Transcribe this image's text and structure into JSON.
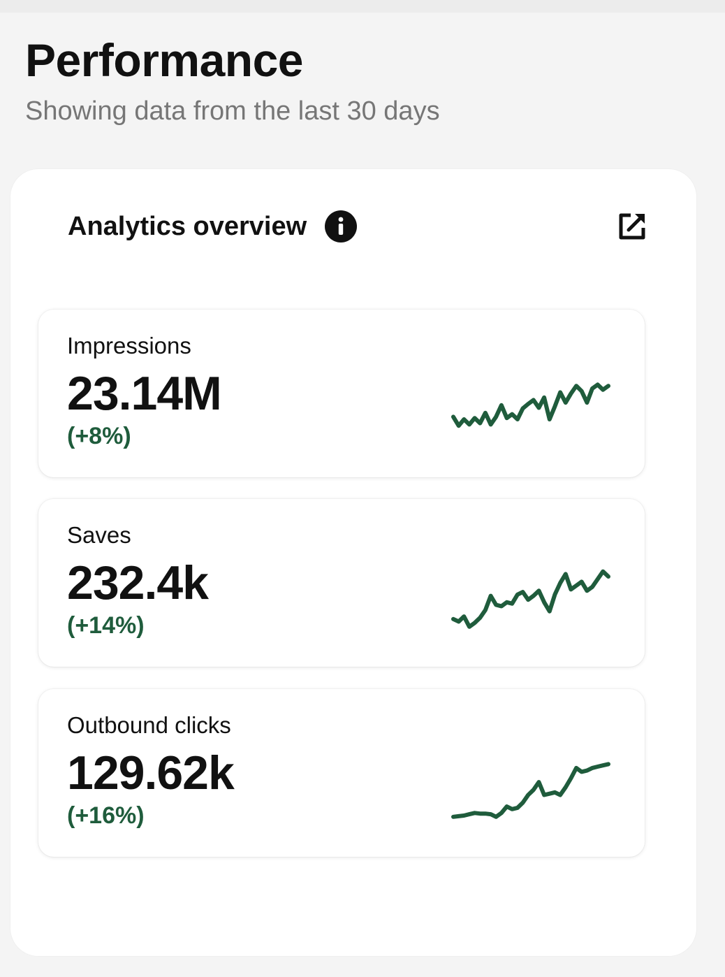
{
  "header": {
    "title": "Performance",
    "subtitle": "Showing data from the last 30 days"
  },
  "card": {
    "title": "Analytics overview",
    "info_icon": "info-icon",
    "external_icon": "external-link-icon"
  },
  "colors": {
    "positive": "#1f5c3c",
    "sparkline": "#1f5c3c"
  },
  "metrics": [
    {
      "label": "Impressions",
      "value": "23.14M",
      "change": "(+8%)",
      "trend": [
        42,
        28,
        38,
        30,
        40,
        32,
        48,
        30,
        42,
        60,
        40,
        46,
        38,
        55,
        62,
        68,
        56,
        72,
        38,
        58,
        80,
        64,
        78,
        90,
        82,
        64,
        86,
        92,
        84,
        90
      ]
    },
    {
      "label": "Saves",
      "value": "232.4k",
      "change": "(+14%)",
      "trend": [
        22,
        18,
        26,
        10,
        16,
        24,
        36,
        58,
        44,
        42,
        48,
        46,
        60,
        64,
        52,
        58,
        66,
        48,
        34,
        60,
        78,
        92,
        68,
        74,
        80,
        66,
        72,
        84,
        96,
        88
      ]
    },
    {
      "label": "Outbound clicks",
      "value": "129.62k",
      "change": "(+16%)",
      "trend": [
        10,
        11,
        12,
        14,
        16,
        15,
        15,
        14,
        10,
        16,
        26,
        22,
        24,
        32,
        44,
        52,
        64,
        44,
        46,
        48,
        44,
        56,
        70,
        86,
        80,
        82,
        86,
        88,
        90,
        92
      ]
    }
  ]
}
